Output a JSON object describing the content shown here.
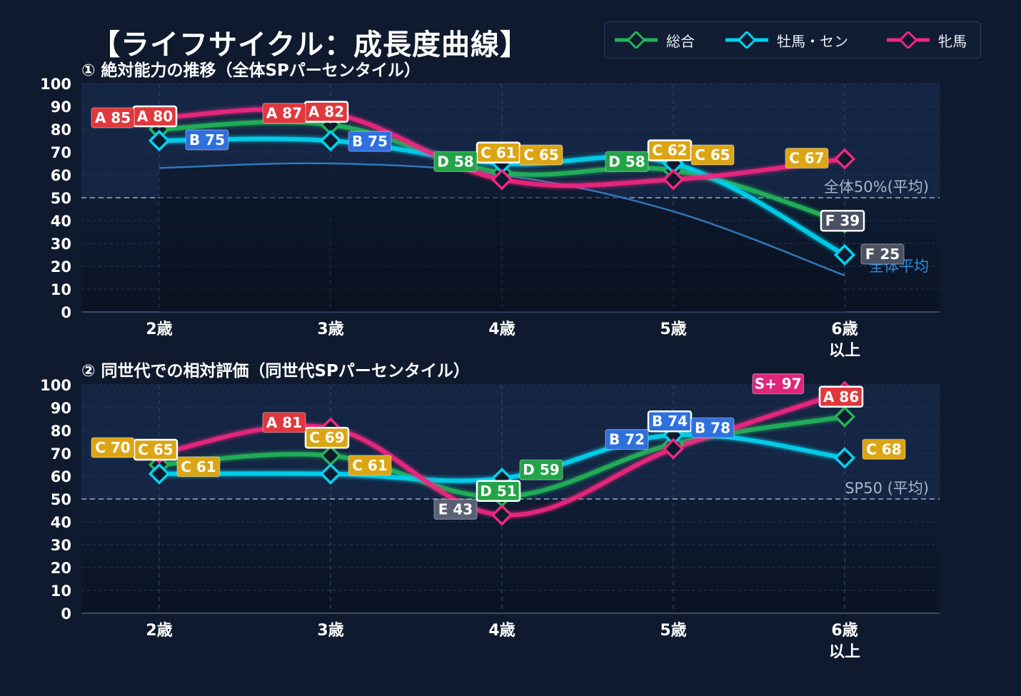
{
  "title": "【ライフサイクル：成長度曲線】",
  "legend": [
    {
      "label": "総合",
      "color": "#22b45a"
    },
    {
      "label": "牡馬・セン",
      "color": "#00d4f0"
    },
    {
      "label": "牝馬",
      "color": "#f0287f"
    }
  ],
  "colors": {
    "background": "#0f1a2e",
    "grade_A": "#e0383d",
    "grade_B": "#2f70df",
    "grade_C": "#dca514",
    "grade_D": "#23a447",
    "grade_E": "#5a6177",
    "grade_F": "#4a5163",
    "grade_S": "#e0257c"
  },
  "chart_data": [
    {
      "type": "line",
      "title": "① 絶対能力の推移（全体SPパーセンタイル）",
      "categories": [
        "2歳",
        "3歳",
        "4歳",
        "5歳",
        "6歳\n以上"
      ],
      "ylim": [
        0,
        100
      ],
      "yticks": [
        "0",
        "10",
        "20",
        "30",
        "40",
        "50",
        "60",
        "70",
        "80",
        "90",
        "100"
      ],
      "grid": true,
      "reference_line": {
        "value": 50,
        "label": "全体50%(平均)"
      },
      "average_curve": {
        "label": "全体平均",
        "values": [
          63,
          65,
          60,
          44,
          16
        ]
      },
      "series": [
        {
          "name": "総合",
          "values": [
            80,
            82,
            61,
            62,
            39
          ],
          "labels": [
            "A 80",
            "A 82",
            "C 61",
            "C 62",
            "F 39"
          ]
        },
        {
          "name": "牡馬・セン",
          "values": [
            75,
            75,
            65,
            65,
            25
          ],
          "labels": [
            "B 75",
            "B 75",
            "C 65",
            "C 65",
            "F 25"
          ]
        },
        {
          "name": "牝馬",
          "values": [
            85,
            87,
            58,
            58,
            67
          ],
          "labels": [
            "A 85",
            "A 87",
            "D 58",
            "D 58",
            "C 67"
          ]
        }
      ]
    },
    {
      "type": "line",
      "title": "② 同世代での相対評価（同世代SPパーセンタイル）",
      "categories": [
        "2歳",
        "3歳",
        "4歳",
        "5歳",
        "6歳\n以上"
      ],
      "ylim": [
        0,
        100
      ],
      "yticks": [
        "0",
        "10",
        "20",
        "30",
        "40",
        "50",
        "60",
        "70",
        "80",
        "90",
        "100"
      ],
      "grid": true,
      "reference_line": {
        "value": 50,
        "label": "SP50 (平均)"
      },
      "series": [
        {
          "name": "総合",
          "values": [
            65,
            69,
            51,
            74,
            86
          ],
          "labels": [
            "C 65",
            "C 69",
            "D 51",
            "B 74",
            "A 86"
          ]
        },
        {
          "name": "牡馬・セン",
          "values": [
            61,
            61,
            59,
            78,
            68
          ],
          "labels": [
            "C 61",
            "C 61",
            "D 59",
            "B 78",
            "C 68"
          ]
        },
        {
          "name": "牝馬",
          "values": [
            70,
            81,
            43,
            72,
            97
          ],
          "labels": [
            "C 70",
            "A 81",
            "E 43",
            "B 72",
            "S+ 97"
          ]
        }
      ]
    }
  ]
}
